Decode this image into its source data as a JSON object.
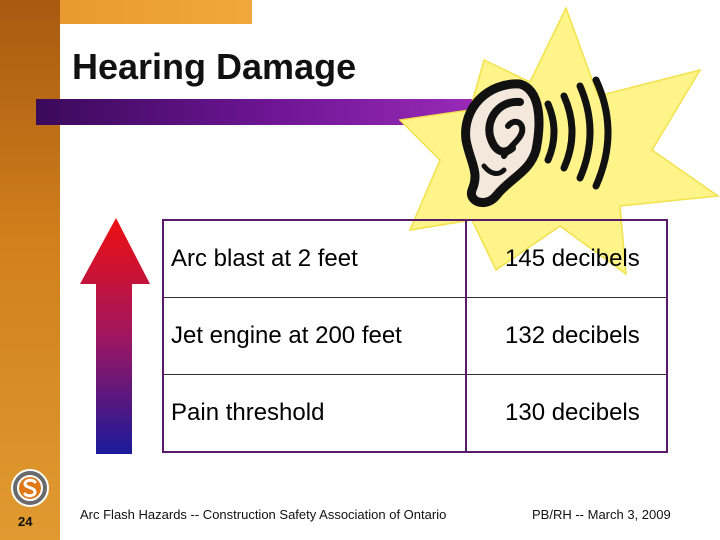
{
  "slide": {
    "title": "Hearing Damage",
    "page_number": "24",
    "footer_left": "Arc Flash Hazards -- Construction Safety Association of Ontario",
    "footer_right": "PB/RH -- March 3, 2009"
  },
  "table": {
    "rows": [
      {
        "source": "Arc blast at 2 feet",
        "level": "145 decibels"
      },
      {
        "source": "Jet engine at 200 feet",
        "level": "132 decibels"
      },
      {
        "source": "Pain threshold",
        "level": "130 decibels"
      }
    ]
  },
  "icons": {
    "ear": "ear-icon",
    "starburst": "starburst-icon",
    "sound_waves": "sound-waves-icon",
    "arrow": "arrow-up-icon",
    "logo": "csao-logo-icon"
  },
  "colors": {
    "accent_orange": "#d0801c",
    "title_bar_purple": "#6a1490",
    "table_border": "#5a1a6a",
    "starburst_yellow": "#fff48a",
    "arrow_top": "#ee1010",
    "arrow_bottom": "#1a1a9a"
  }
}
